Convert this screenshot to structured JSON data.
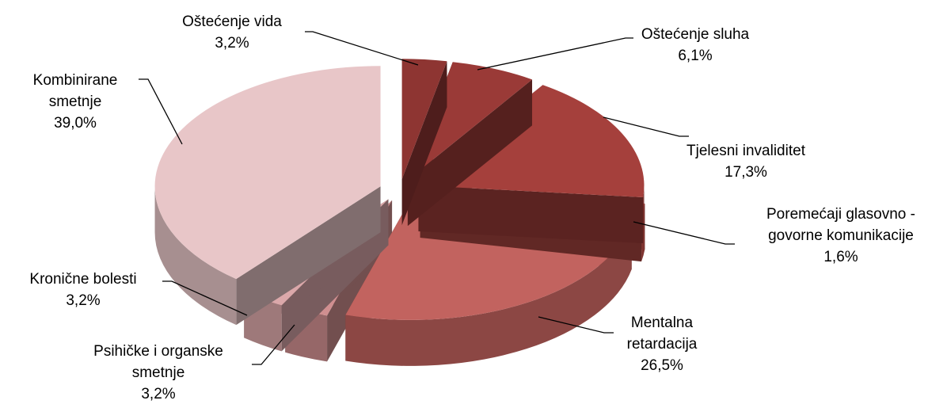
{
  "chart_data": {
    "type": "pie3d",
    "categories": [
      "Oštećenje vida",
      "Oštećenje sluha",
      "Tjelesni invaliditet",
      "Poremećaji glasovno - govorne komunikacije",
      "Mentalna retardacija",
      "Psihičke i organske smetnje",
      "Kronične bolesti",
      "Kombinirane smetnje"
    ],
    "values": [
      3.2,
      6.1,
      17.3,
      1.6,
      26.5,
      3.2,
      3.2,
      39.0
    ],
    "value_labels": [
      "3,2%",
      "6,1%",
      "17,3%",
      "1,6%",
      "26,5%",
      "3,2%",
      "3,2%",
      "39,0%"
    ],
    "colors": [
      "#8e3532",
      "#9a3a37",
      "#a5403c",
      "#b04843",
      "#c2635f",
      "#d08f90",
      "#dba8aa",
      "#e8c6c8"
    ]
  }
}
